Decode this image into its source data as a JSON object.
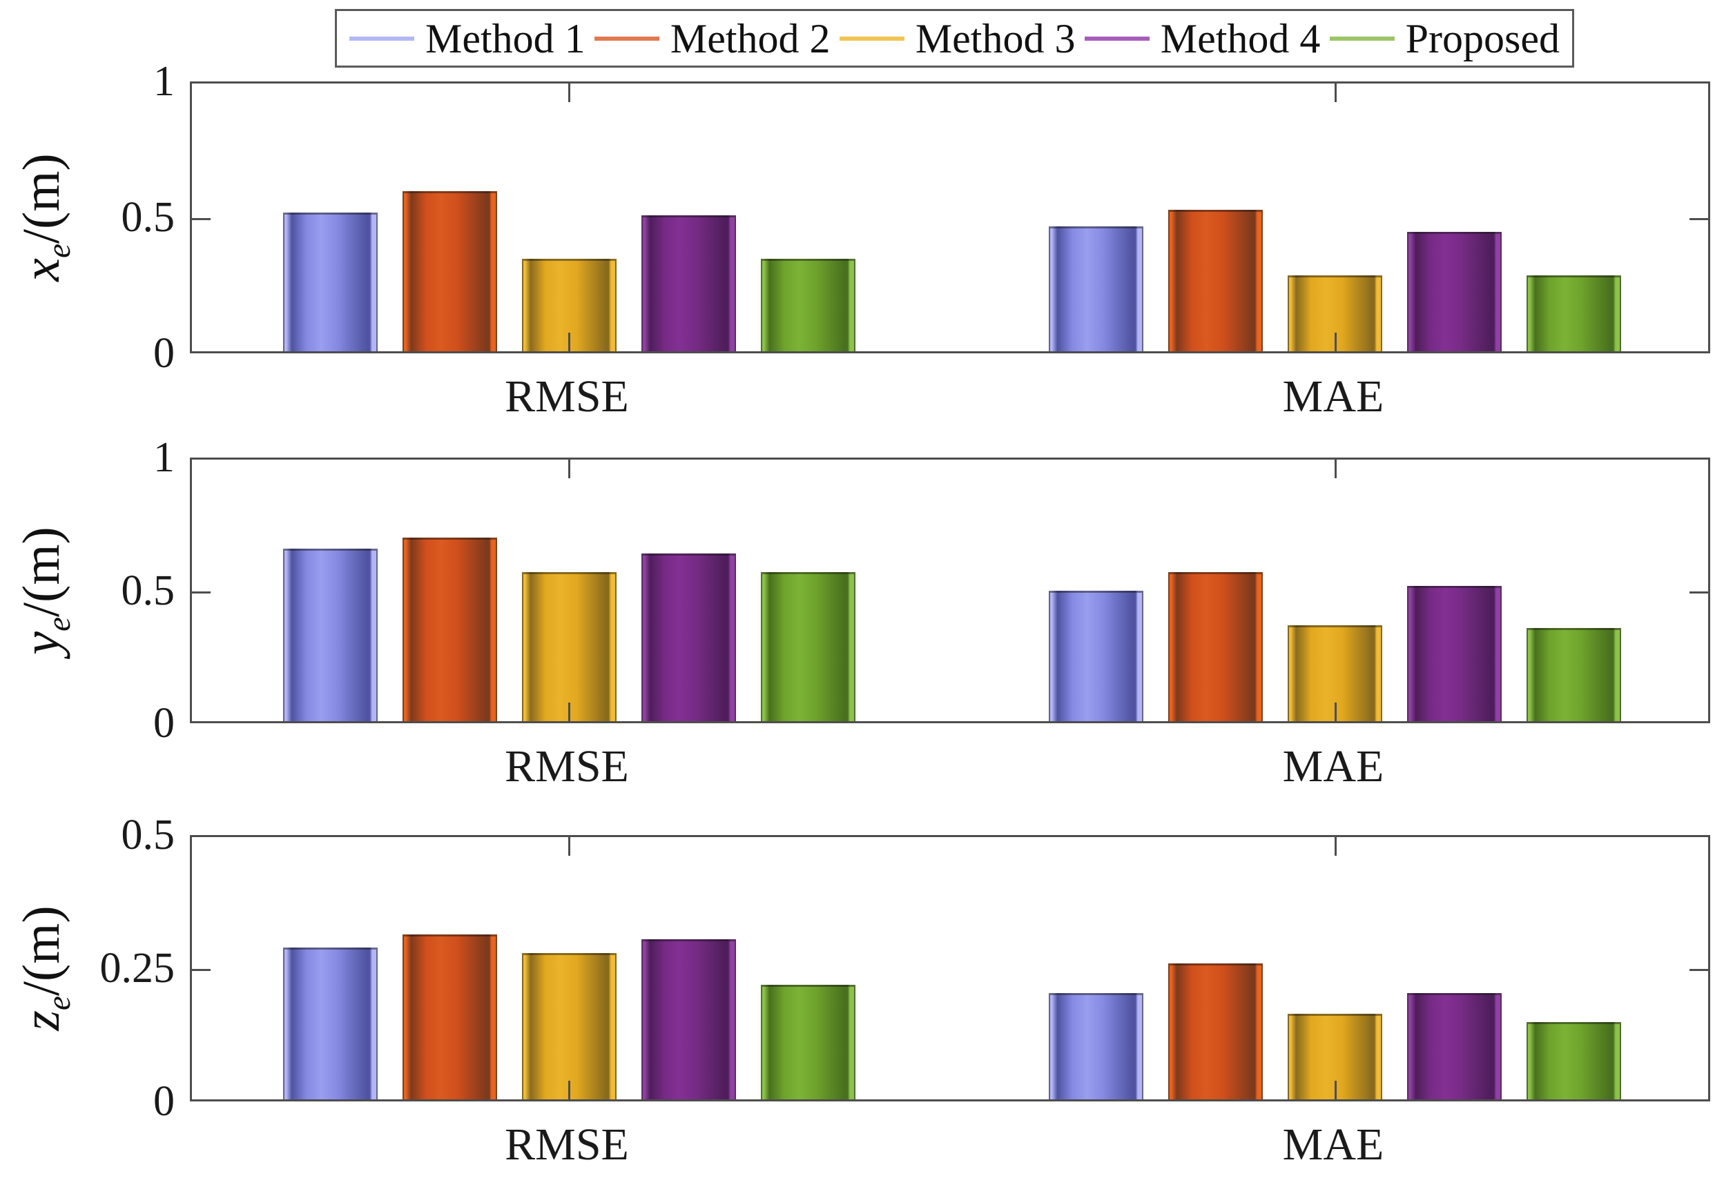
{
  "figure": {
    "background": "#ffffff"
  },
  "legend": {
    "items": [
      {
        "label": "Method 1",
        "line_color": "#b4b8f2"
      },
      {
        "label": "Method 2",
        "line_color": "#e27950"
      },
      {
        "label": "Method 3",
        "line_color": "#f0c552"
      },
      {
        "label": "Method 4",
        "line_color": "#a75dba"
      },
      {
        "label": "Proposed",
        "line_color": "#9cc568"
      }
    ]
  },
  "methods": [
    {
      "name": "Method 1",
      "base": "#8589e2",
      "dark": "#4f53a0",
      "hi": "#9a9eef",
      "rim": "#b2b6f8"
    },
    {
      "name": "Method 2",
      "base": "#d04f1c",
      "dark": "#7e3a1c",
      "hi": "#da5a20",
      "rim": "#e8641f"
    },
    {
      "name": "Method 3",
      "base": "#e2a81f",
      "dark": "#8a6b1e",
      "hi": "#eab329",
      "rim": "#f0bc33"
    },
    {
      "name": "Method 4",
      "base": "#762b85",
      "dark": "#4e1e5a",
      "hi": "#833094",
      "rim": "#9240a4"
    },
    {
      "name": "Proposed",
      "base": "#6fa32c",
      "dark": "#49701e",
      "hi": "#7cb336",
      "rim": "#8cc24a"
    }
  ],
  "chart_data": [
    {
      "type": "bar",
      "subplot": "x-error",
      "ylabel": "x_e/(m)",
      "ylabel_parts": {
        "var": "x",
        "sub": "e",
        "unit": "/(m)"
      },
      "ylim": [
        0,
        1
      ],
      "yticks": [
        "0",
        "0.5",
        "1"
      ],
      "categories": [
        "RMSE",
        "MAE"
      ],
      "grid": false,
      "legend_position": "top",
      "series": [
        {
          "name": "Method 1",
          "values": [
            0.51,
            0.46
          ]
        },
        {
          "name": "Method 2",
          "values": [
            0.59,
            0.52
          ]
        },
        {
          "name": "Method 3",
          "values": [
            0.34,
            0.28
          ]
        },
        {
          "name": "Method 4",
          "values": [
            0.5,
            0.44
          ]
        },
        {
          "name": "Proposed",
          "values": [
            0.34,
            0.28
          ]
        }
      ]
    },
    {
      "type": "bar",
      "subplot": "y-error",
      "ylabel": "y_e/(m)",
      "ylabel_parts": {
        "var": "y",
        "sub": "e",
        "unit": "/(m)"
      },
      "ylim": [
        0,
        1
      ],
      "yticks": [
        "0",
        "0.5",
        "1"
      ],
      "categories": [
        "RMSE",
        "MAE"
      ],
      "grid": false,
      "series": [
        {
          "name": "Method 1",
          "values": [
            0.65,
            0.49
          ]
        },
        {
          "name": "Method 2",
          "values": [
            0.69,
            0.56
          ]
        },
        {
          "name": "Method 3",
          "values": [
            0.56,
            0.36
          ]
        },
        {
          "name": "Method 4",
          "values": [
            0.63,
            0.51
          ]
        },
        {
          "name": "Proposed",
          "values": [
            0.56,
            0.35
          ]
        }
      ]
    },
    {
      "type": "bar",
      "subplot": "z-error",
      "ylabel": "z_e/(m)",
      "ylabel_parts": {
        "var": "z",
        "sub": "e",
        "unit": "/(m)"
      },
      "ylim": [
        0,
        0.5
      ],
      "yticks": [
        "0",
        "0.25",
        "0.5"
      ],
      "categories": [
        "RMSE",
        "MAE"
      ],
      "grid": false,
      "series": [
        {
          "name": "Method 1",
          "values": [
            0.285,
            0.2
          ]
        },
        {
          "name": "Method 2",
          "values": [
            0.31,
            0.255
          ]
        },
        {
          "name": "Method 3",
          "values": [
            0.275,
            0.16
          ]
        },
        {
          "name": "Method 4",
          "values": [
            0.3,
            0.2
          ]
        },
        {
          "name": "Proposed",
          "values": [
            0.215,
            0.145
          ]
        }
      ]
    }
  ]
}
